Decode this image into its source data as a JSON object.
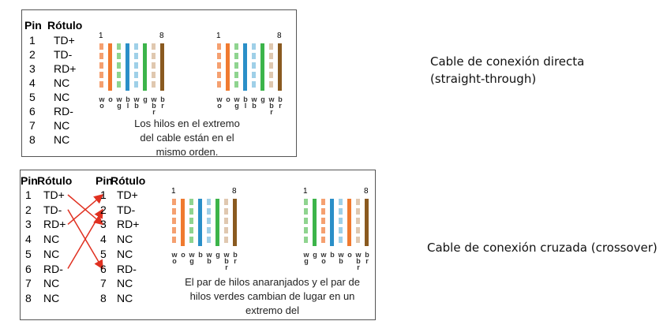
{
  "straight_through": {
    "table": {
      "headers": [
        "Pin",
        "Rótulo"
      ],
      "rows": [
        [
          "1",
          "TD+"
        ],
        [
          "2",
          "TD-"
        ],
        [
          "3",
          "RD+"
        ],
        [
          "4",
          "NC"
        ],
        [
          "5",
          "NC"
        ],
        [
          "6",
          "RD-"
        ],
        [
          "7",
          "NC"
        ],
        [
          "8",
          "NC"
        ]
      ]
    },
    "connectors": [
      {
        "pin_start": "1",
        "pin_end": "8",
        "wires": [
          {
            "label": "wo",
            "color": "#f5a070",
            "striped": true
          },
          {
            "label": "o",
            "color": "#f07a30",
            "striped": false
          },
          {
            "label": "wg",
            "color": "#8fd48f",
            "striped": true
          },
          {
            "label": "bl",
            "color": "#2a8fc8",
            "striped": false
          },
          {
            "label": "wb",
            "color": "#9fd0e8",
            "striped": true
          },
          {
            "label": "g",
            "color": "#3cb44a",
            "striped": false
          },
          {
            "label": "wbr",
            "color": "#e0c8b0",
            "striped": true
          },
          {
            "label": "br",
            "color": "#8a5a20",
            "striped": false
          }
        ]
      },
      {
        "pin_start": "1",
        "pin_end": "8",
        "wires": [
          {
            "label": "wo",
            "color": "#f5a070",
            "striped": true
          },
          {
            "label": "o",
            "color": "#f07a30",
            "striped": false
          },
          {
            "label": "wg",
            "color": "#8fd48f",
            "striped": true
          },
          {
            "label": "bl",
            "color": "#2a8fc8",
            "striped": false
          },
          {
            "label": "wb",
            "color": "#9fd0e8",
            "striped": true
          },
          {
            "label": "g",
            "color": "#3cb44a",
            "striped": false
          },
          {
            "label": "wbr",
            "color": "#e0c8b0",
            "striped": true
          },
          {
            "label": "br",
            "color": "#8a5a20",
            "striped": false
          }
        ]
      }
    ],
    "caption": [
      "Los hilos en el extremo",
      "del cable están en el",
      "mismo orden."
    ]
  },
  "crossover": {
    "tables": [
      {
        "headers": [
          "Pin",
          "Rótulo"
        ],
        "rows": [
          [
            "1",
            "TD+"
          ],
          [
            "2",
            "TD-"
          ],
          [
            "3",
            "RD+"
          ],
          [
            "4",
            "NC"
          ],
          [
            "5",
            "NC"
          ],
          [
            "6",
            "RD-"
          ],
          [
            "7",
            "NC"
          ],
          [
            "8",
            "NC"
          ]
        ]
      },
      {
        "headers": [
          "Pin",
          "Rótulo"
        ],
        "rows": [
          [
            "1",
            "TD+"
          ],
          [
            "2",
            "TD-"
          ],
          [
            "3",
            "RD+"
          ],
          [
            "4",
            "NC"
          ],
          [
            "5",
            "NC"
          ],
          [
            "6",
            "RD-"
          ],
          [
            "7",
            "NC"
          ],
          [
            "8",
            "NC"
          ]
        ]
      }
    ],
    "connectors": [
      {
        "pin_start": "1",
        "pin_end": "8",
        "wires": [
          {
            "label": "wo",
            "color": "#f5a070",
            "striped": true
          },
          {
            "label": "o",
            "color": "#f07a30",
            "striped": false
          },
          {
            "label": "wg",
            "color": "#8fd48f",
            "striped": true
          },
          {
            "label": "b",
            "color": "#2a8fc8",
            "striped": false
          },
          {
            "label": "wb",
            "color": "#9fd0e8",
            "striped": true
          },
          {
            "label": "g",
            "color": "#3cb44a",
            "striped": false
          },
          {
            "label": "wbr",
            "color": "#e0c8b0",
            "striped": true
          },
          {
            "label": "br",
            "color": "#8a5a20",
            "striped": false
          }
        ]
      },
      {
        "pin_start": "1",
        "pin_end": "8",
        "wires": [
          {
            "label": "wg",
            "color": "#8fd48f",
            "striped": true
          },
          {
            "label": "g",
            "color": "#3cb44a",
            "striped": false
          },
          {
            "label": "wo",
            "color": "#f5a070",
            "striped": true
          },
          {
            "label": "b",
            "color": "#2a8fc8",
            "striped": false
          },
          {
            "label": "wb",
            "color": "#9fd0e8",
            "striped": true
          },
          {
            "label": "o",
            "color": "#f07a30",
            "striped": false
          },
          {
            "label": "wbr",
            "color": "#e0c8b0",
            "striped": true
          },
          {
            "label": "br",
            "color": "#8a5a20",
            "striped": false
          }
        ]
      }
    ],
    "caption": [
      "El par de hilos anaranjados y el par de",
      "hilos verdes cambian de lugar en un",
      "extremo del"
    ]
  },
  "labels": {
    "straight": [
      "Cable de conexión directa",
      "(straight-through)"
    ],
    "crossover": "Cable de conexión cruzada (crossover)"
  }
}
